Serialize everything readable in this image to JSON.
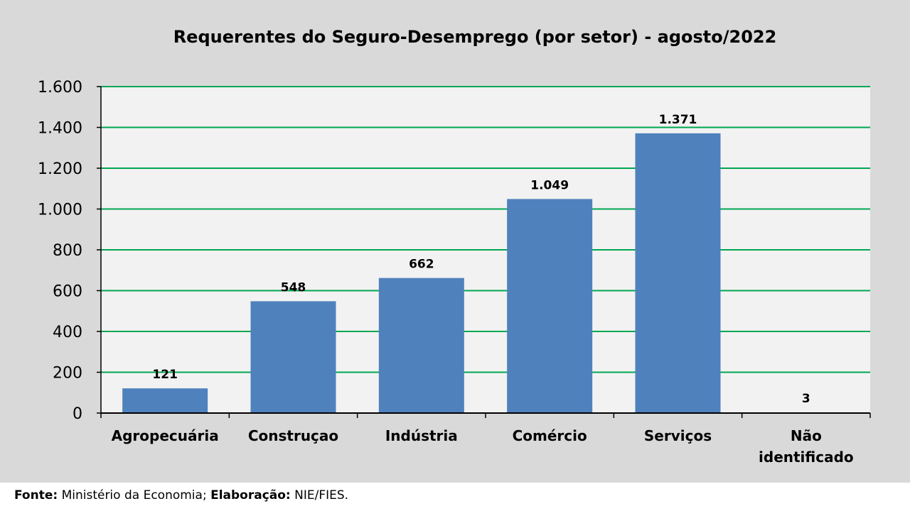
{
  "chart_data": {
    "type": "bar",
    "title": "Requerentes do Seguro-Desemprego (por setor) - agosto/2022",
    "categories": [
      "Agropecuária",
      "Construçao",
      "Indústria",
      "Comércio",
      "Serviços",
      "Não identificado"
    ],
    "category_lines": [
      [
        "Agropecuária"
      ],
      [
        "Construçao"
      ],
      [
        "Indústria"
      ],
      [
        "Comércio"
      ],
      [
        "Serviços"
      ],
      [
        "Não",
        "identificado"
      ]
    ],
    "values": [
      121,
      548,
      662,
      1049,
      1371,
      3
    ],
    "data_labels": [
      "121",
      "548",
      "662",
      "1.049",
      "1.371",
      "3"
    ],
    "ylim": [
      0,
      1600
    ],
    "yticks": [
      0,
      200,
      400,
      600,
      800,
      1000,
      1200,
      1400,
      1600
    ],
    "ytick_labels": [
      "0",
      "200",
      "400",
      "600",
      "800",
      "1.000",
      "1.200",
      "1.400",
      "1.600"
    ],
    "xlabel": "",
    "ylabel": "",
    "grid": true,
    "legend": "none",
    "colors": {
      "bar": "#4f81bd",
      "grid": "#00a651",
      "plot_bg": "#f2f2f2",
      "page_bg": "#d9d9d9",
      "axis": "#000000"
    }
  },
  "footer": {
    "source_label": "Fonte:",
    "source_value": "Ministério da Economia;",
    "credit_label": "Elaboração:",
    "credit_value": "NIE/FIES."
  }
}
